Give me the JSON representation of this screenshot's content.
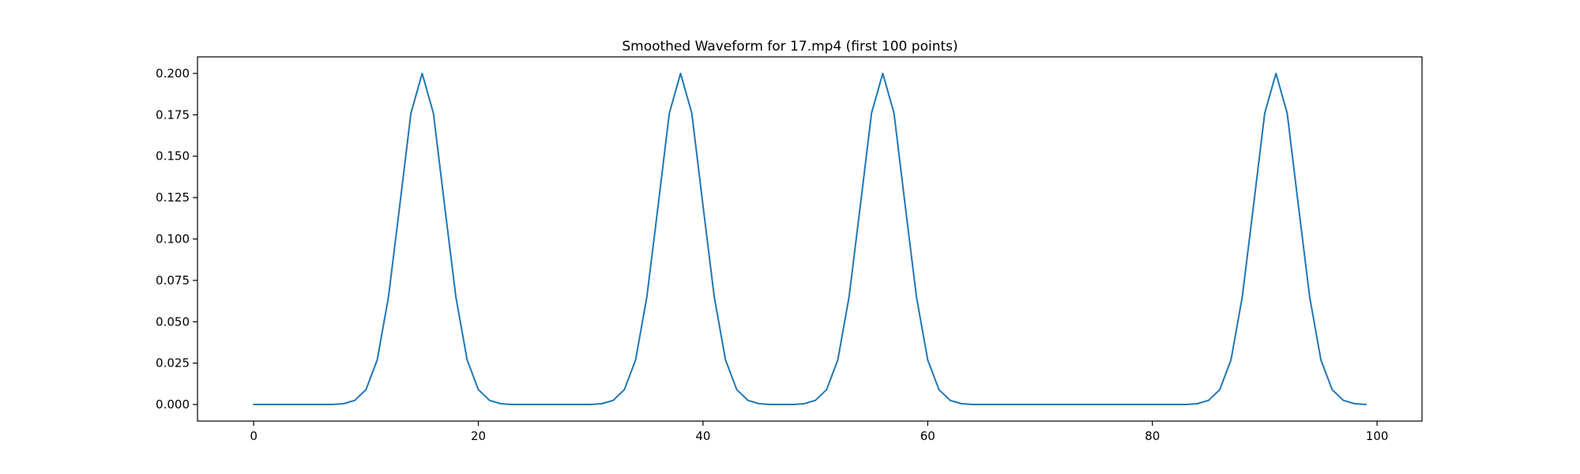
{
  "chart_data": {
    "type": "line",
    "title": "Smoothed Waveform for 17.mp4 (first 100 points)",
    "xlabel": "",
    "ylabel": "",
    "xlim": [
      -5,
      104
    ],
    "ylim": [
      -0.01,
      0.21
    ],
    "xticks": [
      0,
      20,
      40,
      60,
      80,
      100
    ],
    "xtick_labels": [
      "0",
      "20",
      "40",
      "60",
      "80",
      "100"
    ],
    "yticks": [
      0.0,
      0.025,
      0.05,
      0.075,
      0.1,
      0.125,
      0.15,
      0.175,
      0.2
    ],
    "ytick_labels": [
      "0.000",
      "0.025",
      "0.050",
      "0.075",
      "0.100",
      "0.125",
      "0.150",
      "0.175",
      "0.200"
    ],
    "grid": false,
    "legend": "none",
    "series": [
      {
        "color": "#1f77b4",
        "x": [
          0,
          1,
          2,
          3,
          4,
          5,
          6,
          7,
          8,
          9,
          10,
          11,
          12,
          13,
          14,
          15,
          16,
          17,
          18,
          19,
          20,
          21,
          22,
          23,
          24,
          25,
          26,
          27,
          28,
          29,
          30,
          31,
          32,
          33,
          34,
          35,
          36,
          37,
          38,
          39,
          40,
          41,
          42,
          43,
          44,
          45,
          46,
          47,
          48,
          49,
          50,
          51,
          52,
          53,
          54,
          55,
          56,
          57,
          58,
          59,
          60,
          61,
          62,
          63,
          64,
          65,
          66,
          67,
          68,
          69,
          70,
          71,
          72,
          73,
          74,
          75,
          76,
          77,
          78,
          79,
          80,
          81,
          82,
          83,
          84,
          85,
          86,
          87,
          88,
          89,
          90,
          91,
          92,
          93,
          94,
          95,
          96,
          97,
          98,
          99
        ],
        "y": [
          0.0,
          0.0,
          0.0,
          0.0,
          0.0,
          0.0,
          0.0,
          0.0,
          0.0005,
          0.0025,
          0.009,
          0.027,
          0.065,
          0.12,
          0.176,
          0.2,
          0.176,
          0.12,
          0.065,
          0.027,
          0.009,
          0.0025,
          0.0005,
          0.0,
          0.0,
          0.0,
          0.0,
          0.0,
          0.0,
          0.0,
          0.0,
          0.0005,
          0.0025,
          0.009,
          0.027,
          0.065,
          0.12,
          0.176,
          0.2,
          0.176,
          0.12,
          0.065,
          0.027,
          0.009,
          0.0025,
          0.0005,
          0.0,
          0.0,
          0.0,
          0.0005,
          0.0025,
          0.009,
          0.027,
          0.065,
          0.12,
          0.176,
          0.2,
          0.176,
          0.12,
          0.065,
          0.027,
          0.009,
          0.0025,
          0.0005,
          0.0,
          0.0,
          0.0,
          0.0,
          0.0,
          0.0,
          0.0,
          0.0,
          0.0,
          0.0,
          0.0,
          0.0,
          0.0,
          0.0,
          0.0,
          0.0,
          0.0,
          0.0,
          0.0,
          0.0,
          0.0005,
          0.0025,
          0.009,
          0.027,
          0.065,
          0.12,
          0.176,
          0.2,
          0.176,
          0.12,
          0.065,
          0.027,
          0.009,
          0.0025,
          0.0005,
          0.0
        ]
      }
    ]
  }
}
